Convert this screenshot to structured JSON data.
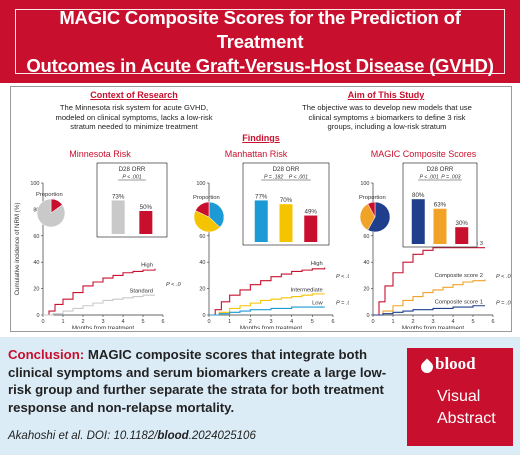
{
  "header": {
    "title_line1": "MAGIC Composite Scores for the Prediction of Treatment",
    "title_line2": "Outcomes in Acute Graft-Versus-Host Disease (GVHD)"
  },
  "context": {
    "heading": "Context of Research",
    "line1": "The Minnesota risk system for acute GVHD,",
    "line2": "modeled on clinical symptoms, lacks a low-risk",
    "line3": "stratum needed to minimize treatment"
  },
  "aim": {
    "heading": "Aim of This Study",
    "line1": "The objective was to develop new models that use",
    "line2": "clinical symptoms ± biomarkers to define 3 risk",
    "line3": "groups, including a low-risk stratum"
  },
  "findings_heading": "Findings",
  "shared": {
    "ylabel": "Cumulative incidence of NRM (%)",
    "xlabel": "Months from treatment",
    "proportion_label": "Proportion",
    "orr_label": "D28 ORR"
  },
  "colors": {
    "red": "#c8102e",
    "gray": "#c9c9c9",
    "blue": "#1c9ad6",
    "yellow": "#f5c400",
    "navy": "#1f3e8c",
    "orange": "#f0a326"
  },
  "chart_data": [
    {
      "type": "line",
      "title": "Minnesota Risk",
      "xlabel": "Months from treatment",
      "ylabel": "Cumulative incidence of NRM (%)",
      "xlim": [
        0,
        6
      ],
      "ylim": [
        0,
        100
      ],
      "x_ticks": [
        "0",
        "1",
        "2",
        "3",
        "4",
        "5",
        "6"
      ],
      "y_ticks": [
        "0",
        "20",
        "40",
        "60",
        "80",
        "100"
      ],
      "pvalues": [
        "P < .001"
      ],
      "pie": {
        "label": "Proportion",
        "slices": [
          {
            "name": "High",
            "value": 0.15,
            "color": "#c8102e"
          },
          {
            "name": "Standard",
            "value": 0.85,
            "color": "#c9c9c9"
          }
        ]
      },
      "orr": {
        "label": "D28 ORR",
        "bars": [
          {
            "value": 73,
            "label": "73%",
            "color": "#c9c9c9"
          },
          {
            "value": 50,
            "label": "50%",
            "color": "#c8102e"
          }
        ],
        "pvalues": [
          "P < .001"
        ]
      },
      "series": [
        {
          "name": "High",
          "color": "#c8102e",
          "points": [
            [
              0,
              0
            ],
            [
              0.3,
              3
            ],
            [
              0.6,
              8
            ],
            [
              1,
              12
            ],
            [
              1.5,
              17
            ],
            [
              2,
              22
            ],
            [
              2.5,
              25
            ],
            [
              3,
              28
            ],
            [
              3.5,
              30
            ],
            [
              4,
              32
            ],
            [
              4.5,
              33
            ],
            [
              5,
              34
            ],
            [
              5.6,
              35
            ]
          ]
        },
        {
          "name": "Standard",
          "color": "#c9c9c9",
          "points": [
            [
              0,
              0
            ],
            [
              0.5,
              1
            ],
            [
              1,
              3
            ],
            [
              1.5,
              5
            ],
            [
              2,
              7
            ],
            [
              2.5,
              9
            ],
            [
              3,
              11
            ],
            [
              3.5,
              12
            ],
            [
              4,
              13
            ],
            [
              4.5,
              14
            ],
            [
              5,
              15
            ],
            [
              5.6,
              15
            ]
          ]
        }
      ]
    },
    {
      "type": "line",
      "title": "Manhattan Risk",
      "xlabel": "Months from treatment",
      "ylabel": "Cumulative incidence of NRM (%)",
      "xlim": [
        0,
        6
      ],
      "ylim": [
        0,
        100
      ],
      "x_ticks": [
        "0",
        "1",
        "2",
        "3",
        "4",
        "5",
        "6"
      ],
      "y_ticks": [
        "0",
        "20",
        "40",
        "60",
        "80",
        "100"
      ],
      "pvalues": [
        "P < .001",
        "P = .014"
      ],
      "pie": {
        "label": "Proportion",
        "slices": [
          {
            "name": "Low",
            "value": 0.37,
            "color": "#1c9ad6"
          },
          {
            "name": "Intermediate",
            "value": 0.45,
            "color": "#f5c400"
          },
          {
            "name": "High",
            "value": 0.18,
            "color": "#c8102e"
          }
        ]
      },
      "orr": {
        "label": "D28 ORR",
        "bars": [
          {
            "value": 77,
            "label": "77%",
            "color": "#1c9ad6"
          },
          {
            "value": 70,
            "label": "70%",
            "color": "#f5c400"
          },
          {
            "value": 49,
            "label": "49%",
            "color": "#c8102e"
          }
        ],
        "pvalues": [
          "P = .182",
          "P < .001"
        ]
      },
      "series": [
        {
          "name": "High",
          "color": "#c8102e",
          "points": [
            [
              0,
              0
            ],
            [
              0.3,
              4
            ],
            [
              0.6,
              10
            ],
            [
              1,
              15
            ],
            [
              1.5,
              19
            ],
            [
              2,
              23
            ],
            [
              2.5,
              26
            ],
            [
              3,
              29
            ],
            [
              3.5,
              31
            ],
            [
              4,
              33
            ],
            [
              4.5,
              34
            ],
            [
              5,
              35
            ],
            [
              5.6,
              36
            ]
          ]
        },
        {
          "name": "Intermediate",
          "color": "#f5c400",
          "points": [
            [
              0,
              0
            ],
            [
              0.5,
              2
            ],
            [
              1,
              5
            ],
            [
              1.5,
              7
            ],
            [
              2,
              9
            ],
            [
              2.5,
              11
            ],
            [
              3,
              12
            ],
            [
              3.5,
              13
            ],
            [
              4,
              14
            ],
            [
              4.5,
              15
            ],
            [
              5,
              16
            ],
            [
              5.6,
              16
            ]
          ]
        },
        {
          "name": "Low",
          "color": "#1c9ad6",
          "points": [
            [
              0,
              0
            ],
            [
              0.5,
              1
            ],
            [
              1,
              2
            ],
            [
              1.5,
              3
            ],
            [
              2,
              4
            ],
            [
              3,
              5
            ],
            [
              4,
              6
            ],
            [
              5,
              6
            ],
            [
              5.6,
              6
            ]
          ]
        }
      ]
    },
    {
      "type": "line",
      "title": "MAGIC Composite Scores",
      "xlabel": "Months from treatment",
      "ylabel": "Cumulative incidence of NRM (%)",
      "xlim": [
        0,
        6
      ],
      "ylim": [
        0,
        100
      ],
      "x_ticks": [
        "0",
        "1",
        "2",
        "3",
        "4",
        "5",
        "6"
      ],
      "y_ticks": [
        "0",
        "20",
        "40",
        "60",
        "80",
        "100"
      ],
      "pvalues": [
        "P < .001",
        "P = .005"
      ],
      "pie": {
        "label": "Proportion",
        "slices": [
          {
            "name": "Composite score 1",
            "value": 0.58,
            "color": "#1f3e8c"
          },
          {
            "name": "Composite score 2",
            "value": 0.34,
            "color": "#f0a326"
          },
          {
            "name": "Composite score 3",
            "value": 0.08,
            "color": "#c8102e"
          }
        ]
      },
      "orr": {
        "label": "D28 ORR",
        "bars": [
          {
            "value": 80,
            "label": "80%",
            "color": "#1f3e8c"
          },
          {
            "value": 63,
            "label": "63%",
            "color": "#f0a326"
          },
          {
            "value": 30,
            "label": "30%",
            "color": "#c8102e"
          }
        ],
        "pvalues": [
          "P < .001",
          "P = .003"
        ]
      },
      "series": [
        {
          "name": "Composite score 3",
          "color": "#c8102e",
          "points": [
            [
              0,
              0
            ],
            [
              0.3,
              10
            ],
            [
              0.6,
              22
            ],
            [
              1,
              32
            ],
            [
              1.5,
              40
            ],
            [
              2,
              46
            ],
            [
              2.5,
              49
            ],
            [
              3,
              51
            ],
            [
              3.5,
              51
            ],
            [
              4,
              51
            ],
            [
              5,
              51
            ],
            [
              5.6,
              51
            ]
          ]
        },
        {
          "name": "Composite score 2",
          "color": "#f0a326",
          "points": [
            [
              0,
              0
            ],
            [
              0.5,
              3
            ],
            [
              1,
              7
            ],
            [
              1.5,
              11
            ],
            [
              2,
              14
            ],
            [
              2.5,
              17
            ],
            [
              3,
              19
            ],
            [
              3.5,
              21
            ],
            [
              4,
              23
            ],
            [
              4.5,
              25
            ],
            [
              5,
              26
            ],
            [
              5.6,
              27
            ]
          ]
        },
        {
          "name": "Composite score 1",
          "color": "#1f3e8c",
          "points": [
            [
              0,
              0
            ],
            [
              0.5,
              1
            ],
            [
              1,
              2
            ],
            [
              1.5,
              3
            ],
            [
              2,
              4
            ],
            [
              3,
              5
            ],
            [
              4,
              6
            ],
            [
              5,
              7
            ],
            [
              5.6,
              7
            ]
          ]
        }
      ]
    }
  ],
  "conclusion": {
    "label": "Conclusion:",
    "text": "MAGIC composite scores that integrate both clinical symptoms and serum biomarkers create a large low-risk group and further separate the strata for both treatment response and non-relapse mortality."
  },
  "citation": {
    "prefix": "Akahoshi et al. DOI: 10.1182/",
    "journal": "blood",
    "suffix": ".2024025106"
  },
  "logo": {
    "brand": "blood",
    "line1": "Visual",
    "line2": "Abstract"
  }
}
